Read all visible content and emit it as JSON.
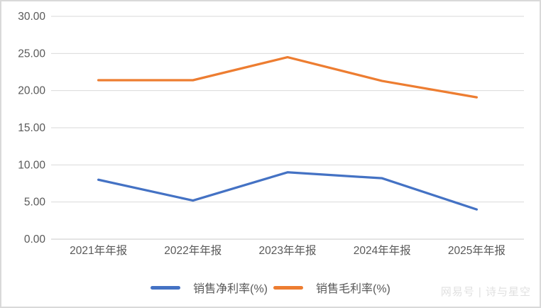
{
  "chart_data": {
    "type": "line",
    "categories": [
      "2021年年报",
      "2022年年报",
      "2023年年报",
      "2024年年报",
      "2025年年报"
    ],
    "series": [
      {
        "name": "销售净利率(%)",
        "values": [
          8.0,
          5.2,
          9.0,
          8.2,
          4.0
        ],
        "color": "#4472C4"
      },
      {
        "name": "销售毛利率(%)",
        "values": [
          21.4,
          21.4,
          24.5,
          21.3,
          19.1
        ],
        "color": "#ED7D31"
      }
    ],
    "ylim": [
      0,
      30
    ],
    "ytick_step": 5,
    "ytick_decimals": 2,
    "grid": "horizontal",
    "legend_position": "bottom"
  },
  "watermark": {
    "text": "网易号 | 诗与星空"
  },
  "colors": {
    "series_blue": "#4472C4",
    "series_orange": "#ED7D31",
    "gridline": "#D9D9D9",
    "axis_text": "#595959",
    "card_border": "#D9D9D9",
    "watermark_text": "#E0E0E0"
  }
}
